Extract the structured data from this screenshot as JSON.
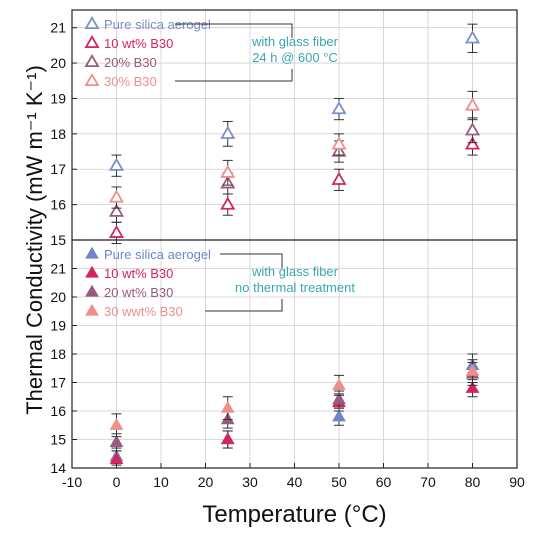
{
  "chart_data": [
    {
      "panel": "top",
      "type": "scatter",
      "marker": "open-triangle",
      "xlim": [
        -10,
        90
      ],
      "ylim": [
        15,
        21.5
      ],
      "yticks": [
        15,
        16,
        17,
        18,
        19,
        20,
        21
      ],
      "annotation": [
        "with glass fiber",
        "24 h @ 600 °C"
      ],
      "annotation_color": "#3aa7b0",
      "series": [
        {
          "name": "Pure silica aerogel",
          "color": "#7b8fc9",
          "x": [
            0,
            25,
            50,
            80
          ],
          "y": [
            17.1,
            18.0,
            18.7,
            20.7
          ],
          "err": [
            0.3,
            0.35,
            0.3,
            0.4
          ]
        },
        {
          "name": "10 wt% B30",
          "color": "#d4265a",
          "x": [
            0,
            25,
            50,
            80
          ],
          "y": [
            15.2,
            16.0,
            16.7,
            17.7
          ],
          "err": [
            0.3,
            0.3,
            0.3,
            0.3
          ]
        },
        {
          "name": "20%  B30",
          "color": "#9a5a7e",
          "x": [
            0,
            25,
            50,
            80
          ],
          "y": [
            15.8,
            16.6,
            17.5,
            18.1
          ],
          "err": [
            0.3,
            0.3,
            0.3,
            0.35
          ]
        },
        {
          "name": "30%  B30",
          "color": "#ef8f8a",
          "x": [
            0,
            25,
            50,
            80
          ],
          "y": [
            16.2,
            16.9,
            17.7,
            18.8
          ],
          "err": [
            0.3,
            0.35,
            0.3,
            0.4
          ]
        }
      ]
    },
    {
      "panel": "bottom",
      "type": "scatter",
      "marker": "filled-triangle",
      "xlim": [
        -10,
        90
      ],
      "ylim": [
        14,
        22
      ],
      "yticks": [
        14,
        15,
        16,
        17,
        18,
        19,
        20,
        21
      ],
      "annotation": [
        "with glass fiber",
        "no thermal treatment"
      ],
      "annotation_color": "#3aa7b0",
      "series": [
        {
          "name": "Pure silica aerogel",
          "color": "#6f85c8",
          "x": [
            0,
            25,
            50,
            80
          ],
          "y": [
            14.4,
            15.0,
            15.8,
            17.6
          ],
          "err": [
            0.3,
            0.3,
            0.3,
            0.4
          ]
        },
        {
          "name": "10 wt% B30",
          "color": "#d4265a",
          "x": [
            0,
            25,
            50,
            80
          ],
          "y": [
            14.3,
            15.0,
            16.3,
            16.8
          ],
          "err": [
            0.3,
            0.3,
            0.3,
            0.3
          ]
        },
        {
          "name": "20 wt%  B30",
          "color": "#9a5a7e",
          "x": [
            0,
            25,
            50,
            80
          ],
          "y": [
            14.9,
            15.7,
            16.4,
            17.3
          ],
          "err": [
            0.3,
            0.3,
            0.3,
            0.4
          ]
        },
        {
          "name": "30 wwt% B30",
          "color": "#ef8f8a",
          "x": [
            0,
            25,
            50,
            80
          ],
          "y": [
            15.5,
            16.1,
            16.9,
            17.4
          ],
          "err": [
            0.4,
            0.4,
            0.35,
            0.4
          ]
        }
      ]
    }
  ],
  "axes": {
    "xlabel": "Temperature (°C)",
    "ylabel": "Thermal Conductivity (mW m⁻¹ K⁻¹)",
    "xticks": [
      -10,
      0,
      10,
      20,
      30,
      40,
      50,
      60,
      70,
      80,
      90
    ],
    "xlim": [
      -10,
      90
    ]
  }
}
